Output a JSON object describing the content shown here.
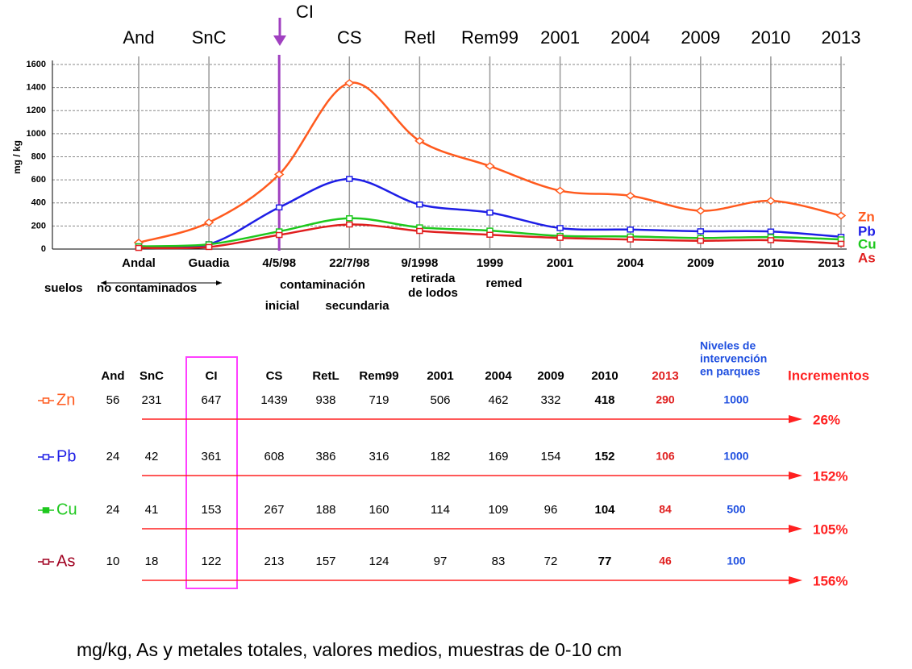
{
  "chart_data": {
    "type": "line",
    "top_labels": [
      "And",
      "SnC",
      "CI",
      "CS",
      "Retl",
      "Rem99",
      "2001",
      "2004",
      "2009",
      "2010",
      "2013"
    ],
    "marker_label": "CI",
    "categories": [
      "Andal",
      "Guadia",
      "4/5/98",
      "22/7/98",
      "9/1998",
      "1999",
      "2001",
      "2004",
      "2009",
      "2010",
      "2013"
    ],
    "annotations": [
      "suelos",
      "no contaminados",
      "contaminación",
      "inicial",
      "secundaria",
      "retirada",
      "de lodos",
      "remed"
    ],
    "y_label": "mg / kg",
    "ylim": [
      0,
      1600
    ],
    "yticks": [
      0,
      200,
      400,
      600,
      800,
      1000,
      1200,
      1400,
      1600
    ],
    "grid": true,
    "series": [
      {
        "name": "Zn",
        "color": "#ff5a1e",
        "values": [
          56,
          231,
          647,
          1439,
          938,
          719,
          506,
          462,
          332,
          418,
          290
        ]
      },
      {
        "name": "Pb",
        "color": "#1e1ee6",
        "values": [
          24,
          42,
          361,
          608,
          386,
          316,
          182,
          169,
          154,
          152,
          106
        ]
      },
      {
        "name": "Cu",
        "color": "#1ec81e",
        "values": [
          24,
          41,
          153,
          267,
          188,
          160,
          114,
          109,
          96,
          104,
          84
        ]
      },
      {
        "name": "As",
        "color": "#e01e1e",
        "values": [
          10,
          18,
          122,
          213,
          157,
          124,
          97,
          83,
          72,
          77,
          46
        ]
      }
    ]
  },
  "table": {
    "header": [
      "And",
      "SnC",
      "CI",
      "CS",
      "RetL",
      "Rem99",
      "2001",
      "2004",
      "2009",
      "2010",
      "2013"
    ],
    "levels_header": [
      "Niveles de",
      "intervención",
      "en parques"
    ],
    "increments_header": "Incrementos",
    "levels": [
      1000,
      1000,
      500,
      100
    ],
    "increments": [
      "26%",
      "152%",
      "105%",
      "156%"
    ]
  },
  "footer": "mg/kg,  As y metales totales, valores medios, muestras de 0-10 cm"
}
